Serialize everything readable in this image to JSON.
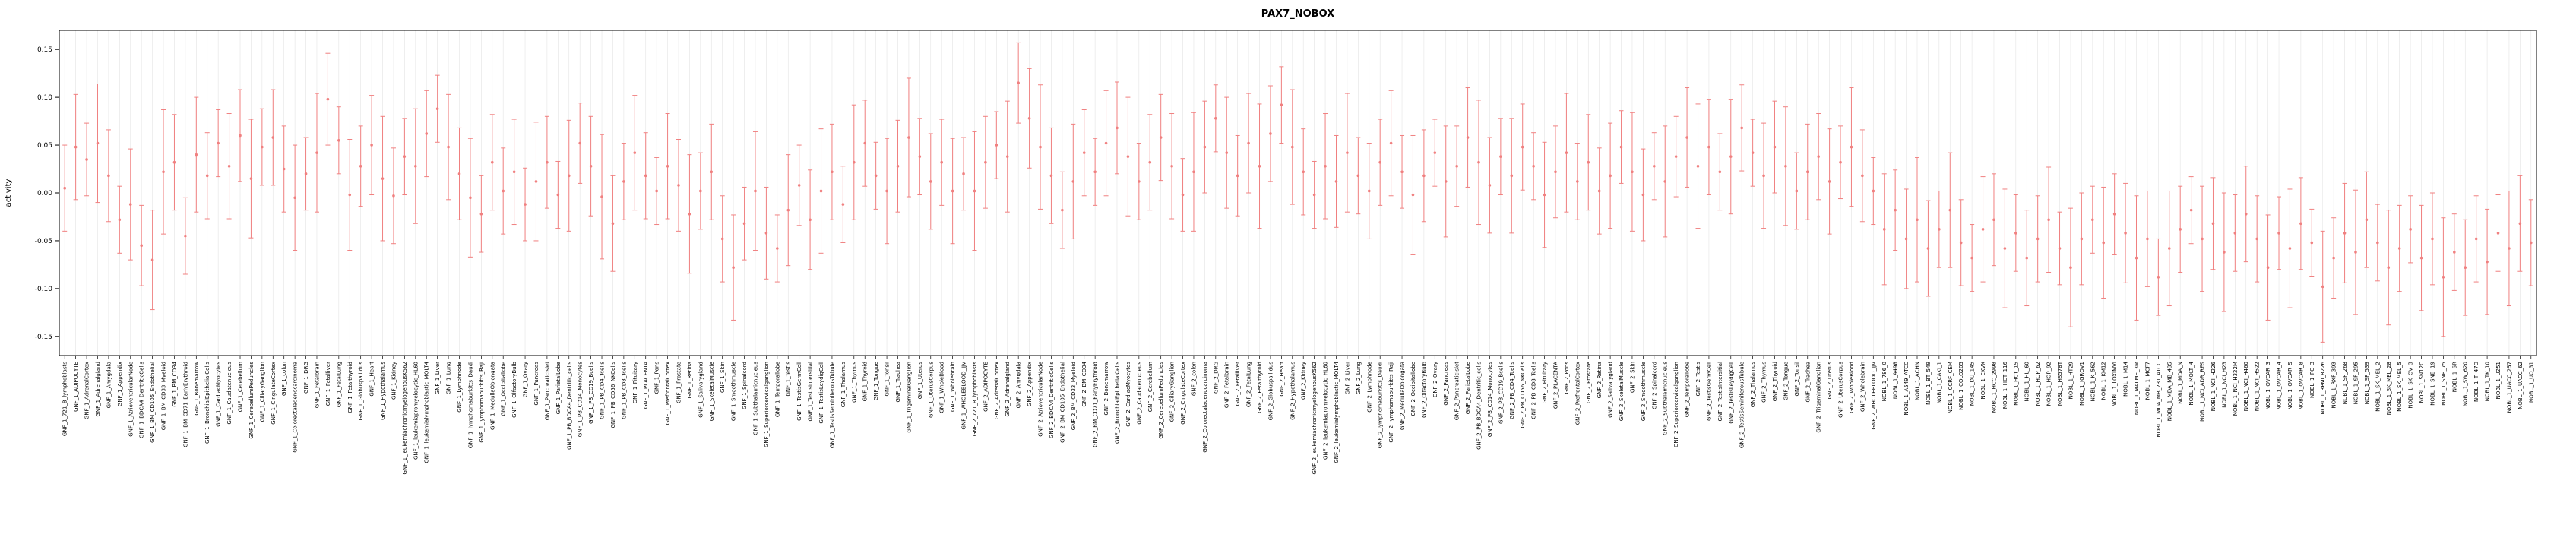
{
  "chart_data": {
    "type": "scatter",
    "title": "PAX7_NOBOX",
    "xlabel": "",
    "ylabel": "activity",
    "ylim": [
      -0.17,
      0.17
    ],
    "yticks": [
      0.15,
      0.1,
      0.05,
      0.0,
      -0.05,
      -0.1,
      -0.15
    ],
    "ytick_labels": [
      "0.15",
      "0.10",
      "0.05",
      "0.00",
      "-0.05",
      "-0.10",
      "-0.15"
    ],
    "grid": true,
    "legend": "none",
    "error_bars": true,
    "point_color": "#f08080",
    "grid_color": "#e4e4e4",
    "axis_color": "#000000",
    "categories": [
      "GNF_1_721_B_lymphoblasts",
      "GNF_1_ADIPOCYTE",
      "GNF_1_AdrenalCortex",
      "GNF_1_Adrenalgland",
      "GNF_1_Amygdala",
      "GNF_1_Appendix",
      "GNF_1_AtrioventricularNode",
      "GNF_1_BDCA4_DentriticCells",
      "GNF_1_BM_CD105_Endothelial",
      "GNF_1_BM_CD33_Myeloid",
      "GNF_1_BM_CD34",
      "GNF_1_BM_CD71_EarlyErythroid",
      "GNF_1_Bonemarrow",
      "GNF_1_BronchialEpithelialCells",
      "GNF_1_CardiacMyocytes",
      "GNF_1_Caudatenucleus",
      "GNF_1_Cerebellum",
      "GNF_1_CerebellumPeduncles",
      "GNF_1_CiliaryGanglion",
      "GNF_1_CingulateCortex",
      "GNF_1_colon",
      "GNF_1_Colorectaladenocarcinoma",
      "GNF_1_DRG",
      "GNF_1_Fetalbrain",
      "GNF_1_Fetalliver",
      "GNF_1_FetalLung",
      "GNF_1_Fetalthyroid",
      "GNF_1_Globuspallidus",
      "GNF_1_Heart",
      "GNF_1_Hypothalamus",
      "GNF_1_Kidney",
      "GNF_1_leukemiachronicmyelogenousK562",
      "GNF_1_leukemiapromyelocytic_HL60",
      "GNF_1_leukemialymphoblastic_MOLT4",
      "GNF_1_Liver",
      "GNF_1_Lung",
      "GNF_1_Lymphnode",
      "GNF_1_lymphomaburkitts_Daudi",
      "GNF_1_lymphomaburkitts_Raji",
      "GNF_1_MedullaOblongata",
      "GNF_1_Occipitallobe",
      "GNF_1_OlfactoryBulb",
      "GNF_1_Ovary",
      "GNF_1_Pancreas",
      "GNF_1_PancreaticIslet",
      "GNF_1_ParietalLobe",
      "GNF_1_PB_BDCA4_Dentritic_cells",
      "GNF_1_PB_CD14_Monocytes",
      "GNF_1_PB_CD19_Bcells",
      "GNF_1_PB_CD4_Tcells",
      "GNF_1_PB_CD56_NKCells",
      "GNF_1_PB_CD8_Tcells",
      "GNF_1_Pituitary",
      "GNF_1_PLACENTA",
      "GNF_1_Pons",
      "GNF_1_PrefrontalCortex",
      "GNF_1_Prostate",
      "GNF_1_Retina",
      "GNF_1_Salivarygland",
      "GNF_1_SkeletalMuscle",
      "GNF_1_Skin",
      "GNF_1_Smoothmuscle",
      "GNF_1_Spinalcord",
      "GNF_1_Subthalamicnucleus",
      "GNF_1_Superiorcervicalganglion",
      "GNF_1_Temporallobe",
      "GNF_1_Testis",
      "GNF_1_TestisGermCell",
      "GNF_1_TestisIntersitial",
      "GNF_1_TestisLeydigCell",
      "GNF_1_TestisSeminiferousTubule",
      "GNF_1_Thalamus",
      "GNF_1_Thymus",
      "GNF_1_Thyroid",
      "GNF_1_Tongue",
      "GNF_1_Tonsil",
      "GNF_1_Trachea",
      "GNF_1_TrigeminalGanglion",
      "GNF_1_Uterus",
      "GNF_1_UterusCorpus",
      "GNF_1_WholeBlood",
      "GNF_1_Wholebrain",
      "GNF_1_WHOLEBLOOD_JJV",
      "GNF_2_721_B_lymphoblasts",
      "GNF_2_ADIPOCYTE",
      "GNF_2_AdrenalCortex",
      "GNF_2_Adrenalgland",
      "GNF_2_Amygdala",
      "GNF_2_Appendix",
      "GNF_2_AtrioventricularNode",
      "GNF_2_BDCA4_DentriticCells",
      "GNF_2_BM_CD105_Endothelial",
      "GNF_2_BM_CD33_Myeloid",
      "GNF_2_BM_CD34",
      "GNF_2_BM_CD71_EarlyErythroid",
      "GNF_2_Bonemarrow",
      "GNF_2_BronchialEpithelialCells",
      "GNF_2_CardiacMyocytes",
      "GNF_2_Caudatenucleus",
      "GNF_2_Cerebellum",
      "GNF_2_CerebellumPeduncles",
      "GNF_2_CiliaryGanglion",
      "GNF_2_CingulateCortex",
      "GNF_2_colon",
      "GNF_2_Colorectaladenocarcinoma",
      "GNF_2_DRG",
      "GNF_2_Fetalbrain",
      "GNF_2_Fetalliver",
      "GNF_2_FetalLung",
      "GNF_2_Fetalthyroid",
      "GNF_2_Globuspallidus",
      "GNF_2_Heart",
      "GNF_2_Hypothalamus",
      "GNF_2_Kidney",
      "GNF_2_leukemiachronicmyelogenousK562",
      "GNF_2_leukemiapromyelocytic_HL60",
      "GNF_2_leukemialymphoblastic_MOLT4",
      "GNF_2_Liver",
      "GNF_2_Lung",
      "GNF_2_Lymphnode",
      "GNF_2_lymphomaburkitts_Daudi",
      "GNF_2_lymphomaburkitts_Raji",
      "GNF_2_MedullaOblongata",
      "GNF_2_Occipitallobe",
      "GNF_2_OlfactoryBulb",
      "GNF_2_Ovary",
      "GNF_2_Pancreas",
      "GNF_2_PancreaticIslet",
      "GNF_2_ParietalLobe",
      "GNF_2_PB_BDCA4_Dentritic_cells",
      "GNF_2_PB_CD14_Monocytes",
      "GNF_2_PB_CD19_Bcells",
      "GNF_2_PB_CD4_Tcells",
      "GNF_2_PB_CD56_NKCells",
      "GNF_2_PB_CD8_Tcells",
      "GNF_2_Pituitary",
      "GNF_2_PLACENTA",
      "GNF_2_Pons",
      "GNF_2_PrefrontalCortex",
      "GNF_2_Prostate",
      "GNF_2_Retina",
      "GNF_2_Salivarygland",
      "GNF_2_SkeletalMuscle",
      "GNF_2_Skin",
      "GNF_2_Smoothmuscle",
      "GNF_2_Spinalcord",
      "GNF_2_Subthalamicnucleus",
      "GNF_2_Superiorcervicalganglion",
      "GNF_2_Temporallobe",
      "GNF_2_Testis",
      "GNF_2_TestisGermCell",
      "GNF_2_TestisIntersitial",
      "GNF_2_TestisLeydigCell",
      "GNF_2_TestisSeminiferousTubule",
      "GNF_2_Thalamus",
      "GNF_2_Thymus",
      "GNF_2_Thyroid",
      "GNF_2_Tongue",
      "GNF_2_Tonsil",
      "GNF_2_Trachea",
      "GNF_2_TrigeminalGanglion",
      "GNF_2_Uterus",
      "GNF_2_UterusCorpus",
      "GNF_2_WholeBlood",
      "GNF_2_Wholebrain",
      "GNF_2_WHOLEBLOOD_JJV",
      "NOBL_1_786_0",
      "NOBL_1_A498",
      "NOBL_1_A549_ATCC",
      "NOBL_1_ACHN",
      "NOBL_1_BT_549",
      "NOBL_1_CAKI_1",
      "NOBL_1_CCRF_CEM",
      "NOBL_1_COLO205",
      "NOBL_1_DU_145",
      "NOBL_1_EKVX",
      "NOBL_1_HCC_2998",
      "NOBL_1_HCT_116",
      "NOBL_1_HCT_15",
      "NOBL_1_HL_60",
      "NOBL_1_HOP_62",
      "NOBL_1_HOP_92",
      "NOBL_1_HS578T",
      "NOBL_1_HT29",
      "NOBL_1_IGROV1",
      "NOBL_1_K_562",
      "NOBL_1_KM12",
      "NOBL_1_LOXIMVI",
      "NOBL_1_M14",
      "NOBL_1_MALME_3M",
      "NOBL_1_MCF7",
      "NOBL_1_MDA_MB_231_ATCC",
      "NOBL_1_MDA_MB_435",
      "NOBL_1_MDA_N",
      "NOBL_1_MOLT_4",
      "NOBL_1_NCI_ADR_RES",
      "NOBL_1_NCI_H226",
      "NOBL_1_NCI_H23",
      "NOBL_1_NCI_H322M",
      "NOBL_1_NCI_H460",
      "NOBL_1_NCI_H522",
      "NOBL_1_OVCAR_3",
      "NOBL_1_OVCAR_4",
      "NOBL_1_OVCAR_5",
      "NOBL_1_OVCAR_8",
      "NOBL_1_PC_3",
      "NOBL_1_RPMI_8226",
      "NOBL_1_RXF_393",
      "NOBL_1_SF_268",
      "NOBL_1_SF_295",
      "NOBL_1_SF_539",
      "NOBL_1_SK_MEL_2",
      "NOBL_1_SK_MEL_28",
      "NOBL_1_SK_MEL_5",
      "NOBL_1_SK_OV_3",
      "NOBL_1_SN12C",
      "NOBL_1_SNB_19",
      "NOBL_1_SNB_75",
      "NOBL_1_SR",
      "NOBL_1_SW_620",
      "NOBL_1_T_47D",
      "NOBL_1_TK_10",
      "NOBL_1_U251",
      "NOBL_1_UACC_257",
      "NOBL_1_UACC_62",
      "NOBL_1_UO_31"
    ],
    "values": [
      0.005,
      0.048,
      0.035,
      0.052,
      0.018,
      -0.028,
      -0.012,
      -0.055,
      -0.07,
      0.022,
      0.032,
      -0.045,
      0.04,
      0.018,
      0.052,
      0.028,
      0.06,
      0.015,
      0.048,
      0.058,
      0.025,
      -0.005,
      0.02,
      0.042,
      0.098,
      0.055,
      -0.002,
      0.028,
      0.05,
      0.015,
      -0.003,
      0.038,
      0.028,
      0.062,
      0.088,
      0.048,
      0.02,
      -0.005,
      -0.022,
      0.032,
      0.002,
      0.022,
      -0.012,
      0.012,
      0.032,
      -0.002,
      0.018,
      0.052,
      0.028,
      -0.004,
      -0.032,
      0.012,
      0.042,
      0.018,
      0.002,
      0.028,
      0.008,
      -0.022,
      0.002,
      0.022,
      -0.048,
      -0.078,
      -0.032,
      0.002,
      -0.042,
      -0.058,
      -0.018,
      0.008,
      -0.028,
      0.002,
      0.022,
      -0.012,
      0.032,
      0.052,
      0.018,
      0.002,
      0.028,
      0.058,
      0.038,
      0.012,
      0.032,
      0.002,
      0.02,
      0.002,
      0.032,
      0.05,
      0.038,
      0.115,
      0.078,
      0.048,
      0.018,
      -0.018,
      0.012,
      0.042,
      0.022,
      0.052,
      0.068,
      0.038,
      0.012,
      0.032,
      0.058,
      0.028,
      -0.002,
      0.022,
      0.048,
      0.078,
      0.042,
      0.018,
      0.052,
      0.028,
      0.062,
      0.092,
      0.048,
      0.022,
      -0.002,
      0.028,
      0.012,
      0.042,
      0.018,
      0.002,
      0.032,
      0.052,
      0.022,
      -0.002,
      0.018,
      0.042,
      0.012,
      0.028,
      0.058,
      0.032,
      0.008,
      0.038,
      0.018,
      0.048,
      0.028,
      -0.002,
      0.022,
      0.042,
      0.012,
      0.032,
      0.002,
      0.018,
      0.048,
      0.022,
      -0.002,
      0.028,
      0.012,
      0.038,
      0.058,
      0.028,
      0.048,
      0.022,
      0.038,
      0.068,
      0.042,
      0.018,
      0.048,
      0.028,
      0.002,
      0.022,
      0.038,
      0.012,
      0.032,
      0.048,
      0.018,
      0.002,
      -0.038,
      -0.018,
      -0.048,
      -0.028,
      -0.058,
      -0.038,
      -0.018,
      -0.052,
      -0.068,
      -0.038,
      -0.028,
      -0.058,
      -0.042,
      -0.068,
      -0.048,
      -0.028,
      -0.058,
      -0.078,
      -0.048,
      -0.028,
      -0.052,
      -0.022,
      -0.042,
      -0.068,
      -0.048,
      -0.088,
      -0.058,
      -0.038,
      -0.018,
      -0.048,
      -0.032,
      -0.062,
      -0.042,
      -0.022,
      -0.048,
      -0.078,
      -0.042,
      -0.058,
      -0.032,
      -0.052,
      -0.098,
      -0.068,
      -0.042,
      -0.062,
      -0.028,
      -0.052,
      -0.078,
      -0.058,
      -0.038,
      -0.068,
      -0.048,
      -0.088,
      -0.062,
      -0.078,
      -0.048,
      -0.072,
      -0.042,
      -0.058,
      -0.032,
      -0.052
    ],
    "errors": [
      0.045,
      0.055,
      0.038,
      0.062,
      0.048,
      0.035,
      0.058,
      0.042,
      0.052,
      0.065,
      0.05,
      0.04,
      0.06,
      0.045,
      0.035,
      0.055,
      0.048,
      0.062,
      0.04,
      0.05,
      0.045,
      0.055,
      0.038,
      0.062,
      0.048,
      0.035,
      0.058,
      0.042,
      0.052,
      0.065,
      0.05,
      0.04,
      0.06,
      0.045,
      0.035,
      0.055,
      0.048,
      0.062,
      0.04,
      0.05,
      0.045,
      0.055,
      0.038,
      0.062,
      0.048,
      0.035,
      0.058,
      0.042,
      0.052,
      0.065,
      0.05,
      0.04,
      0.06,
      0.045,
      0.035,
      0.055,
      0.048,
      0.062,
      0.04,
      0.05,
      0.045,
      0.055,
      0.038,
      0.062,
      0.048,
      0.035,
      0.058,
      0.042,
      0.052,
      0.065,
      0.05,
      0.04,
      0.06,
      0.045,
      0.035,
      0.055,
      0.048,
      0.062,
      0.04,
      0.05,
      0.045,
      0.055,
      0.038,
      0.062,
      0.048,
      0.035,
      0.058,
      0.042,
      0.052,
      0.065,
      0.05,
      0.04,
      0.06,
      0.045,
      0.035,
      0.055,
      0.048,
      0.062,
      0.04,
      0.05,
      0.045,
      0.055,
      0.038,
      0.062,
      0.048,
      0.035,
      0.058,
      0.042,
      0.052,
      0.065,
      0.05,
      0.04,
      0.06,
      0.045,
      0.035,
      0.055,
      0.048,
      0.062,
      0.04,
      0.05,
      0.045,
      0.055,
      0.038,
      0.062,
      0.048,
      0.035,
      0.058,
      0.042,
      0.052,
      0.065,
      0.05,
      0.04,
      0.06,
      0.045,
      0.035,
      0.055,
      0.048,
      0.062,
      0.04,
      0.05,
      0.045,
      0.055,
      0.038,
      0.062,
      0.048,
      0.035,
      0.058,
      0.042,
      0.052,
      0.065,
      0.05,
      0.04,
      0.06,
      0.045,
      0.035,
      0.055,
      0.048,
      0.062,
      0.04,
      0.05,
      0.045,
      0.055,
      0.038,
      0.062,
      0.048,
      0.035,
      0.058,
      0.042,
      0.052,
      0.065,
      0.05,
      0.04,
      0.06,
      0.045,
      0.035,
      0.055,
      0.048,
      0.062,
      0.04,
      0.05,
      0.045,
      0.055,
      0.038,
      0.062,
      0.048,
      0.035,
      0.058,
      0.042,
      0.052,
      0.065,
      0.05,
      0.04,
      0.06,
      0.045,
      0.035,
      0.055,
      0.048,
      0.062,
      0.04,
      0.05,
      0.045,
      0.055,
      0.038,
      0.062,
      0.048,
      0.035,
      0.058,
      0.042,
      0.052,
      0.065,
      0.05,
      0.04,
      0.06,
      0.045,
      0.035,
      0.055,
      0.048,
      0.062,
      0.04,
      0.05,
      0.045,
      0.055,
      0.04,
      0.06,
      0.05,
      0.045
    ]
  }
}
